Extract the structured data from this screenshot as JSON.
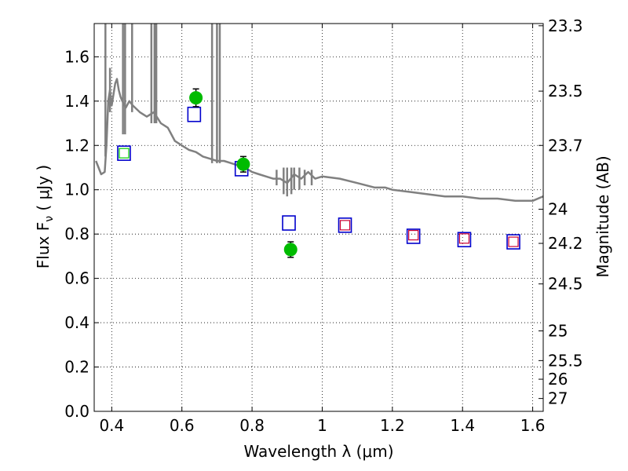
{
  "chart_data": {
    "type": "scatter",
    "xlabel": "Wavelength  λ (μm)",
    "ylabel": "Flux  F",
    "ylabel_sub": "ν",
    "ylabel_unit": " ( μJy )",
    "y2label": "Magnitude (AB)",
    "xlim": [
      0.35,
      1.63
    ],
    "ylim": [
      0.0,
      1.75
    ],
    "grid": true,
    "x_ticks": [
      0.4,
      0.6,
      0.8,
      1.0,
      1.2,
      1.4,
      1.6
    ],
    "x_tick_labels": [
      "0.4",
      "0.6",
      "0.8",
      "1",
      "1.2",
      "1.4",
      "1.6"
    ],
    "y_ticks": [
      0.0,
      0.2,
      0.4,
      0.6,
      0.8,
      1.0,
      1.2,
      1.4,
      1.6
    ],
    "y_tick_labels": [
      "0.0",
      "0.2",
      "0.4",
      "0.6",
      "0.8",
      "1.0",
      "1.2",
      "1.4",
      "1.6"
    ],
    "y2_ticks": [
      {
        "label": "23.3",
        "flux": 1.74
      },
      {
        "label": "23.5",
        "flux": 1.445
      },
      {
        "label": "23.7",
        "flux": 1.2
      },
      {
        "label": "24",
        "flux": 0.912
      },
      {
        "label": "24.2",
        "flux": 0.758
      },
      {
        "label": "24.5",
        "flux": 0.575
      },
      {
        "label": "25",
        "flux": 0.363
      },
      {
        "label": "25.5",
        "flux": 0.229
      },
      {
        "label": "26",
        "flux": 0.145
      },
      {
        "label": "27",
        "flux": 0.058
      }
    ],
    "series": [
      {
        "kind": "line",
        "color": "#808080",
        "x": [
          0.355,
          0.37,
          0.38,
          0.385,
          0.39,
          0.395,
          0.4,
          0.41,
          0.415,
          0.42,
          0.425,
          0.43,
          0.44,
          0.45,
          0.46,
          0.48,
          0.5,
          0.52,
          0.54,
          0.56,
          0.58,
          0.6,
          0.62,
          0.64,
          0.66,
          0.68,
          0.7,
          0.72,
          0.74,
          0.76,
          0.78,
          0.8,
          0.82,
          0.84,
          0.86,
          0.88,
          0.9,
          0.92,
          0.94,
          0.96,
          0.98,
          1.0,
          1.05,
          1.1,
          1.15,
          1.18,
          1.2,
          1.25,
          1.3,
          1.35,
          1.4,
          1.45,
          1.5,
          1.55,
          1.6,
          1.63
        ],
        "y": [
          1.13,
          1.07,
          1.08,
          1.2,
          1.4,
          1.45,
          1.38,
          1.48,
          1.5,
          1.45,
          1.42,
          1.4,
          1.37,
          1.4,
          1.38,
          1.35,
          1.33,
          1.35,
          1.3,
          1.28,
          1.22,
          1.2,
          1.18,
          1.17,
          1.15,
          1.14,
          1.13,
          1.13,
          1.12,
          1.11,
          1.1,
          1.08,
          1.07,
          1.06,
          1.05,
          1.05,
          1.03,
          1.07,
          1.05,
          1.08,
          1.05,
          1.06,
          1.05,
          1.03,
          1.01,
          1.01,
          1.0,
          0.99,
          0.98,
          0.97,
          0.97,
          0.96,
          0.96,
          0.95,
          0.95,
          0.97
        ]
      },
      {
        "kind": "spikes",
        "color": "#808080",
        "lines": [
          {
            "x": 0.382,
            "y1": 1.15,
            "y2": 1.75
          },
          {
            "x": 0.395,
            "y1": 1.35,
            "y2": 1.55
          },
          {
            "x": 0.432,
            "y1": 1.25,
            "y2": 1.75
          },
          {
            "x": 0.438,
            "y1": 1.25,
            "y2": 1.75
          },
          {
            "x": 0.458,
            "y1": 1.35,
            "y2": 1.75
          },
          {
            "x": 0.513,
            "y1": 1.3,
            "y2": 1.75
          },
          {
            "x": 0.522,
            "y1": 1.3,
            "y2": 1.75
          },
          {
            "x": 0.527,
            "y1": 1.3,
            "y2": 1.75
          },
          {
            "x": 0.686,
            "y1": 1.12,
            "y2": 1.75
          },
          {
            "x": 0.7,
            "y1": 1.12,
            "y2": 1.75
          },
          {
            "x": 0.708,
            "y1": 1.12,
            "y2": 1.75
          },
          {
            "x": 0.87,
            "y1": 1.02,
            "y2": 1.09
          },
          {
            "x": 0.89,
            "y1": 0.98,
            "y2": 1.1
          },
          {
            "x": 0.9,
            "y1": 0.97,
            "y2": 1.1
          },
          {
            "x": 0.912,
            "y1": 0.98,
            "y2": 1.1
          },
          {
            "x": 0.92,
            "y1": 1.0,
            "y2": 1.1
          },
          {
            "x": 0.935,
            "y1": 1.0,
            "y2": 1.1
          },
          {
            "x": 0.95,
            "y1": 1.02,
            "y2": 1.09
          },
          {
            "x": 0.97,
            "y1": 1.02,
            "y2": 1.09
          }
        ]
      },
      {
        "kind": "open-square",
        "color": "#0000cc",
        "x": [
          0.435,
          0.635,
          0.77,
          0.905,
          1.065,
          1.26,
          1.405,
          1.545
        ],
        "y": [
          1.165,
          1.34,
          1.095,
          0.85,
          0.84,
          0.79,
          0.775,
          0.765
        ]
      },
      {
        "kind": "open-square-small",
        "color": "#00cc00",
        "x": [
          0.435
        ],
        "y": [
          1.165
        ]
      },
      {
        "kind": "open-square-small",
        "color": "#cc0033",
        "x": [
          1.065,
          1.26,
          1.405,
          1.545
        ],
        "y": [
          0.84,
          0.795,
          0.78,
          0.765
        ]
      },
      {
        "kind": "filled-circle-errorbar",
        "color": "#00bb00",
        "x": [
          0.64,
          0.775,
          0.91
        ],
        "y": [
          1.415,
          1.115,
          0.73
        ],
        "yerr": [
          0.04,
          0.035,
          0.035
        ]
      }
    ]
  }
}
